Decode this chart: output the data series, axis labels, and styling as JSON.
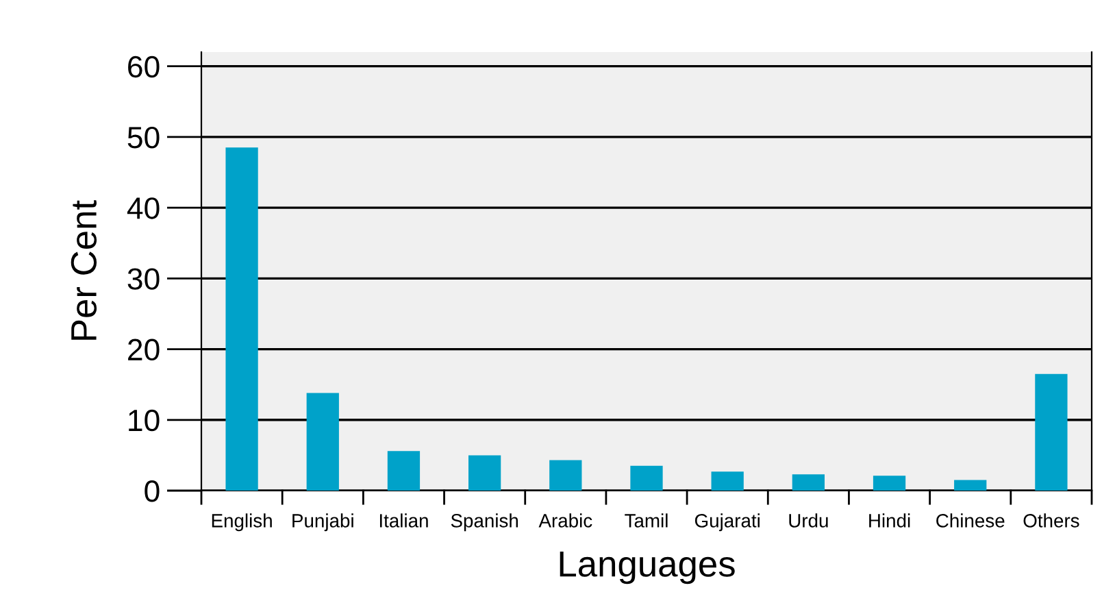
{
  "chart_data": {
    "type": "bar",
    "xlabel": "Languages",
    "ylabel": "Per Cent",
    "categories": [
      "English",
      "Punjabi",
      "Italian",
      "Spanish",
      "Arabic",
      "Tamil",
      "Gujarati",
      "Urdu",
      "Hindi",
      "Chinese",
      "Others"
    ],
    "values": [
      48.5,
      13.8,
      5.6,
      5.0,
      4.3,
      3.5,
      2.7,
      2.3,
      2.1,
      1.5,
      16.5
    ],
    "color": "#00a2c9",
    "ylim": [
      0,
      62
    ],
    "yticks": [
      0,
      10,
      20,
      30,
      40,
      50,
      60
    ],
    "grid": "y"
  }
}
